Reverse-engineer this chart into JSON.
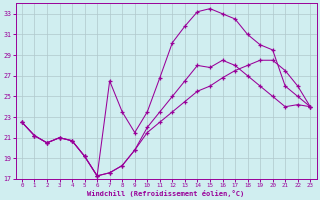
{
  "xlabel": "Windchill (Refroidissement éolien,°C)",
  "xlim": [
    -0.5,
    23.5
  ],
  "ylim": [
    17,
    34
  ],
  "xticks": [
    0,
    1,
    2,
    3,
    4,
    5,
    6,
    7,
    8,
    9,
    10,
    11,
    12,
    13,
    14,
    15,
    16,
    17,
    18,
    19,
    20,
    21,
    22,
    23
  ],
  "yticks": [
    17,
    19,
    21,
    23,
    25,
    27,
    29,
    31,
    33
  ],
  "bg_color": "#d0eef0",
  "line_color": "#990099",
  "grid_color": "#b0c8cc",
  "line1_x": [
    0,
    1,
    2,
    3,
    4,
    5,
    6,
    7,
    8,
    9,
    10,
    11,
    12,
    13,
    14,
    15,
    16,
    17,
    18,
    19,
    20,
    21,
    22,
    23
  ],
  "line1_y": [
    22.5,
    21.2,
    20.5,
    21.0,
    20.7,
    19.2,
    17.3,
    17.6,
    18.3,
    19.8,
    22.0,
    23.5,
    25.0,
    26.5,
    28.0,
    27.8,
    28.5,
    28.0,
    27.0,
    26.0,
    25.0,
    24.0,
    24.2,
    24.0
  ],
  "line2_x": [
    0,
    1,
    2,
    3,
    4,
    5,
    6,
    7,
    8,
    9,
    10,
    11,
    12,
    13,
    14,
    15,
    16,
    17,
    18,
    19,
    20,
    21,
    22,
    23
  ],
  "line2_y": [
    22.5,
    21.2,
    20.5,
    21.0,
    20.7,
    19.2,
    17.3,
    26.5,
    23.5,
    21.5,
    23.5,
    26.8,
    30.2,
    31.8,
    33.2,
    33.5,
    33.0,
    32.5,
    31.0,
    30.0,
    29.5,
    26.0,
    25.0,
    24.0
  ],
  "line3_x": [
    0,
    1,
    2,
    3,
    4,
    5,
    6,
    7,
    8,
    9,
    10,
    11,
    12,
    13,
    14,
    15,
    16,
    17,
    18,
    19,
    20,
    21,
    22,
    23
  ],
  "line3_y": [
    22.5,
    21.2,
    20.5,
    21.0,
    20.7,
    19.2,
    17.3,
    17.6,
    18.3,
    19.8,
    21.5,
    22.5,
    23.5,
    24.5,
    25.5,
    26.0,
    26.8,
    27.5,
    28.0,
    28.5,
    28.5,
    27.5,
    26.0,
    24.0
  ]
}
